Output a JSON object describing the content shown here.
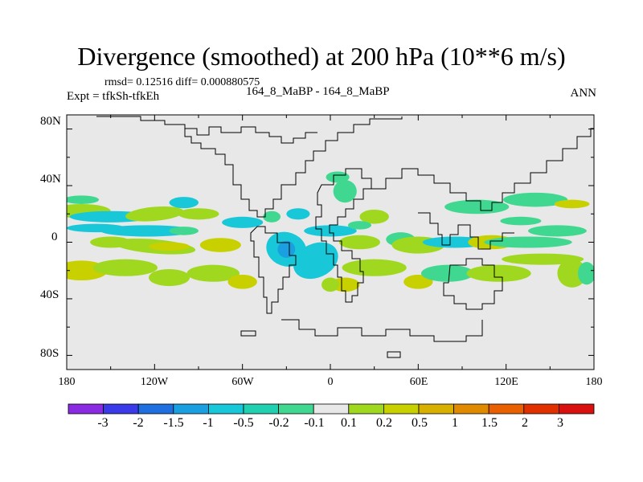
{
  "chart_data": {
    "type": "heatmap",
    "title": "Divergence (smoothed) at 200 hPa (10**6 m/s)",
    "stats": "rmsd= 0.12516 diff= 0.000880575",
    "expt": "Expt = tfkSh-tfkEh",
    "case": "164_8_MaBP - 164_8_MaBP",
    "season": "ANN",
    "xlabels": [
      "180",
      "120W",
      "60W",
      "0",
      "60E",
      "120E",
      "180"
    ],
    "ylabels": [
      "80N",
      "40N",
      "0",
      "40S",
      "80S"
    ],
    "xlim": [
      -180,
      180
    ],
    "ylim": [
      -90,
      90
    ],
    "colorbar": {
      "colors": [
        "#8a2be2",
        "#3a3ae8",
        "#1f6fe0",
        "#1aa0e0",
        "#18c8d8",
        "#20d0b0",
        "#40d890",
        "#e8e8e8",
        "#a0d820",
        "#c8d000",
        "#d8b000",
        "#e08a00",
        "#e86000",
        "#e03000",
        "#d81010"
      ],
      "labels": [
        "-3",
        "-2",
        "-1.5",
        "-1",
        "-0.5",
        "-0.2",
        "-0.1",
        "0.1",
        "0.2",
        "0.5",
        "1",
        "1.5",
        "2",
        "3"
      ]
    },
    "background_color": "#e8e8e8",
    "pattern_colors": {
      "pos_weak": "#a0d820",
      "pos_mid": "#c8d000",
      "neg_mid": "#40d890",
      "neg_strong": "#18c8d8",
      "neg_stronger": "#1aa0e0"
    }
  }
}
